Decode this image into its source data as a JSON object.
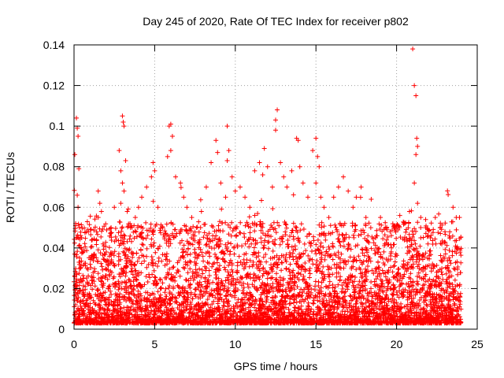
{
  "chart_data": {
    "type": "scatter",
    "title": "Day 245 of 2020, Rate Of TEC Index for receiver p802",
    "xlabel": "GPS time / hours",
    "ylabel": "ROTI / TECUs",
    "xlim": [
      0,
      25
    ],
    "ylim": [
      0,
      0.14
    ],
    "x_ticks": [
      "0",
      "5",
      "10",
      "15",
      "20",
      "25"
    ],
    "y_ticks": [
      "0",
      "0.02",
      "0.04",
      "0.06",
      "0.08",
      "0.1",
      "0.12",
      "0.14"
    ],
    "grid": true,
    "legend": "none",
    "marker": "plus",
    "color": "#ff0000",
    "series": [
      {
        "x": [
          0.05,
          0.1,
          0.15,
          0.2,
          0.25,
          0.3,
          0.2,
          0.25,
          0.15,
          0.3,
          0.1,
          0.35,
          0.4,
          0.5,
          0.6,
          0.8,
          1.0,
          1.2,
          1.4,
          1.5,
          1.6,
          1.7,
          1.5,
          1.4,
          1.8,
          2.0,
          2.3,
          2.5,
          2.8,
          2.9,
          3.0,
          3.05,
          3.1,
          3.2,
          3.0,
          3.1,
          2.9,
          3.3,
          3.5,
          3.8,
          4.0,
          4.2,
          4.5,
          4.8,
          4.9,
          5.0,
          5.2,
          5.5,
          5.8,
          5.9,
          6.0,
          6.1,
          6.0,
          6.3,
          6.6,
          6.8,
          7.0,
          7.3,
          7.6,
          7.9,
          8.2,
          8.5,
          8.8,
          8.9,
          9.1,
          9.4,
          9.5,
          9.6,
          9.5,
          9.8,
          10.0,
          10.3,
          10.6,
          10.9,
          11.2,
          11.5,
          11.8,
          11.7,
          12.0,
          12.3,
          12.5,
          12.6,
          12.5,
          12.8,
          13.0,
          13.2,
          13.5,
          13.8,
          13.9,
          14.0,
          14.2,
          14.5,
          14.8,
          15.0,
          15.1,
          15.2,
          15.0,
          15.3,
          15.5,
          15.8,
          16.1,
          16.4,
          16.7,
          17.0,
          17.3,
          17.5,
          17.8,
          18.1,
          18.4,
          18.7,
          19.0,
          19.3,
          19.6,
          19.9,
          20.2,
          20.5,
          20.8,
          21.0,
          21.1,
          21.2,
          21.25,
          21.3,
          21.2,
          21.1,
          21.3,
          21.5,
          21.8,
          22.1,
          22.4,
          22.7,
          23.0,
          23.3,
          23.5,
          23.7,
          23.9
        ],
        "y": [
          0.086,
          0.052,
          0.104,
          0.099,
          0.095,
          0.079,
          0.066,
          0.06,
          0.045,
          0.041,
          0.012,
          0.035,
          0.03,
          0.038,
          0.025,
          0.03,
          0.032,
          0.036,
          0.044,
          0.068,
          0.062,
          0.058,
          0.055,
          0.048,
          0.042,
          0.038,
          0.05,
          0.06,
          0.088,
          0.078,
          0.105,
          0.102,
          0.1,
          0.083,
          0.072,
          0.068,
          0.062,
          0.058,
          0.05,
          0.055,
          0.06,
          0.065,
          0.07,
          0.075,
          0.082,
          0.078,
          0.06,
          0.05,
          0.085,
          0.1,
          0.101,
          0.095,
          0.088,
          0.075,
          0.072,
          0.065,
          0.06,
          0.055,
          0.05,
          0.058,
          0.07,
          0.082,
          0.093,
          0.087,
          0.072,
          0.065,
          0.1,
          0.088,
          0.083,
          0.075,
          0.068,
          0.07,
          0.065,
          0.06,
          0.078,
          0.082,
          0.089,
          0.076,
          0.08,
          0.07,
          0.103,
          0.108,
          0.098,
          0.082,
          0.075,
          0.07,
          0.078,
          0.094,
          0.093,
          0.08,
          0.072,
          0.065,
          0.088,
          0.094,
          0.085,
          0.08,
          0.072,
          0.065,
          0.06,
          0.055,
          0.065,
          0.07,
          0.075,
          0.068,
          0.06,
          0.065,
          0.07,
          0.055,
          0.05,
          0.045,
          0.055,
          0.05,
          0.048,
          0.05,
          0.056,
          0.052,
          0.058,
          0.138,
          0.12,
          0.115,
          0.094,
          0.09,
          0.086,
          0.072,
          0.062,
          0.055,
          0.05,
          0.045,
          0.055,
          0.05,
          0.048,
          0.045,
          0.06,
          0.055,
          0.055
        ]
      }
    ]
  }
}
